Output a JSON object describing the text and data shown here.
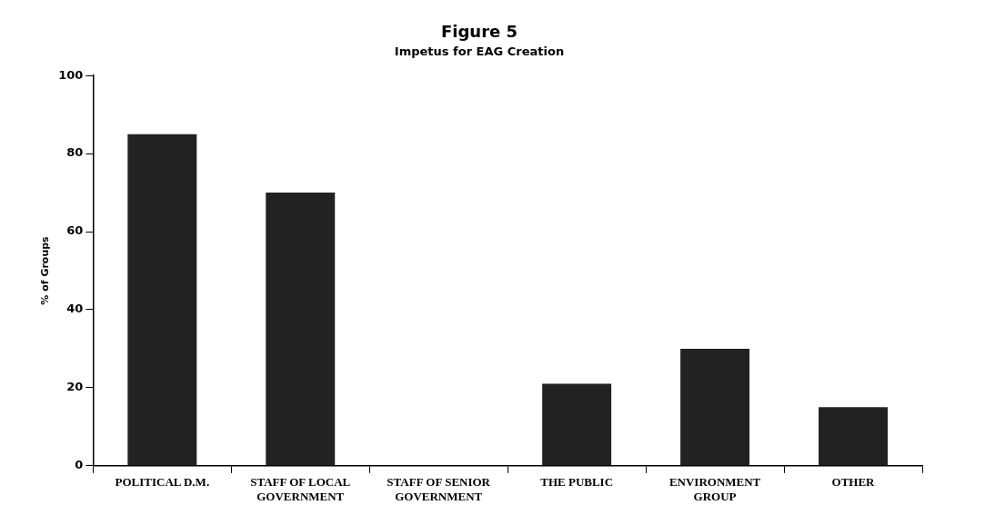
{
  "chart_data": {
    "type": "bar",
    "title": "Figure 5",
    "subtitle": "Impetus for EAG Creation",
    "ylabel": "% of Groups",
    "categories": [
      "POLITICAL D.M.",
      "STAFF OF LOCAL GOVERNMENT",
      "STAFF OF SENIOR GOVERNMENT",
      "THE PUBLIC",
      "ENVIRONMENT GROUP",
      "OTHER"
    ],
    "values": [
      85,
      70,
      0,
      21,
      30,
      15
    ],
    "color": "#222222",
    "ylim": [
      0,
      100
    ],
    "yticks": [
      0,
      20,
      40,
      60,
      80,
      100
    ],
    "grid": false,
    "legend": false
  }
}
